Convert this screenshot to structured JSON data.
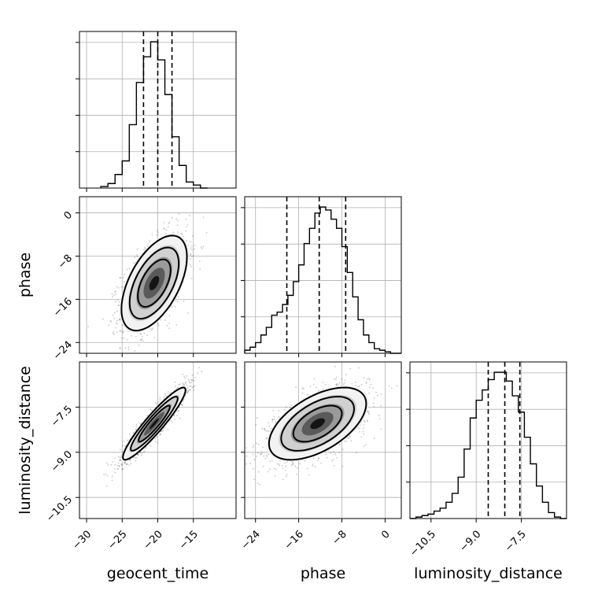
{
  "chart_data": {
    "type": "corner",
    "parameters": [
      "geocent_time",
      "phase",
      "luminosity_distance"
    ],
    "axes": {
      "geocent_time": {
        "range": [
          -31,
          -9
        ],
        "ticks": [
          -30,
          -25,
          -20,
          -15
        ],
        "tick_labels": [
          "−30",
          "−25",
          "−20",
          "−15"
        ]
      },
      "phase": {
        "range": [
          -26,
          3
        ],
        "ticks": [
          -24,
          -16,
          -8,
          0
        ],
        "tick_labels": [
          "−24",
          "−16",
          "−8",
          "0"
        ]
      },
      "luminosity_distance": {
        "range": [
          -11.2,
          -6.0
        ],
        "ticks": [
          -10.5,
          -9.0,
          -7.5
        ],
        "tick_labels": [
          "−10.5",
          "−9.0",
          "−7.5"
        ]
      }
    },
    "histograms": [
      {
        "param": "geocent_time",
        "bin_edges": [
          -28,
          -27,
          -26,
          -25,
          -24,
          -23,
          -22,
          -21,
          -20,
          -19,
          -18,
          -17,
          -16,
          -15,
          -14,
          -13
        ],
        "counts": [
          1,
          3,
          9,
          18,
          42,
          70,
          87,
          97,
          85,
          62,
          34,
          15,
          4,
          2,
          0
        ],
        "quantiles": [
          -22.0,
          -20.0,
          -18.0
        ]
      },
      {
        "param": "phase",
        "bin_edges": [
          -26,
          -25,
          -24,
          -23,
          -22,
          -21,
          -20,
          -19,
          -18,
          -17,
          -16,
          -15,
          -14,
          -13,
          -12,
          -11,
          -10,
          -9,
          -8,
          -7,
          -6,
          -5,
          -4,
          -3,
          -2,
          -1,
          0,
          1,
          2,
          3
        ],
        "counts": [
          2,
          4,
          7,
          12,
          17,
          25,
          27,
          32,
          38,
          47,
          58,
          72,
          82,
          92,
          96,
          94,
          88,
          82,
          70,
          53,
          37,
          22,
          12,
          7,
          3,
          2,
          1,
          0,
          0
        ],
        "quantiles": [
          -18.2,
          -12.2,
          -7.3
        ]
      },
      {
        "param": "luminosity_distance",
        "bin_edges": [
          -11.2,
          -11.0,
          -10.8,
          -10.6,
          -10.4,
          -10.2,
          -10.0,
          -9.8,
          -9.6,
          -9.4,
          -9.2,
          -9.0,
          -8.8,
          -8.6,
          -8.4,
          -8.2,
          -8.0,
          -7.8,
          -7.6,
          -7.4,
          -7.2,
          -7.0,
          -6.8,
          -6.6,
          -6.4,
          -6.2,
          -6.0
        ],
        "counts": [
          0,
          1,
          2,
          3,
          5,
          7,
          11,
          17,
          28,
          47,
          68,
          80,
          87,
          94,
          99,
          99,
          93,
          83,
          72,
          55,
          37,
          22,
          11,
          4,
          1,
          0
        ],
        "quantiles": [
          -8.6,
          -8.05,
          -7.55
        ]
      }
    ],
    "pairs": [
      {
        "x": "geocent_time",
        "y": "phase",
        "mean": [
          -20.5,
          -13.0
        ],
        "sd": [
          2.3,
          4.4
        ],
        "rho": 0.55
      },
      {
        "x": "geocent_time",
        "y": "luminosity_distance",
        "mean": [
          -20.5,
          -8.05
        ],
        "sd": [
          2.2,
          0.6
        ],
        "rho": 0.93
      },
      {
        "x": "phase",
        "y": "luminosity_distance",
        "mean": [
          -12.5,
          -8.05
        ],
        "sd": [
          4.5,
          0.6
        ],
        "rho": 0.55
      }
    ],
    "contour_levels": [
      0.5,
      1.0,
      1.5,
      2.0
    ],
    "grid": true,
    "legend": "none"
  }
}
